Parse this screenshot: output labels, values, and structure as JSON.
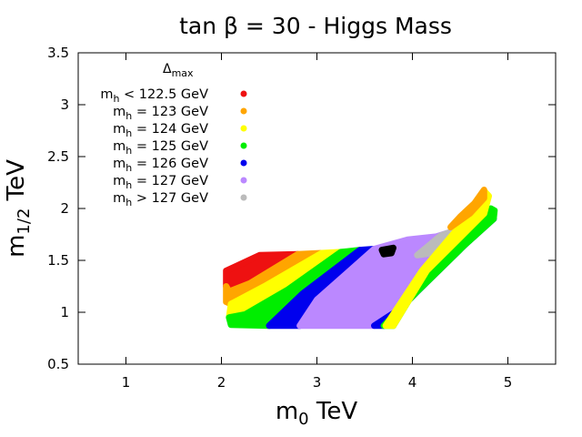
{
  "chart_data": {
    "type": "scatter",
    "title": "tan β = 30 - Higgs Mass",
    "xlabel": {
      "main": "m",
      "sub": "0",
      "rest": " TeV"
    },
    "ylabel": {
      "main": "m",
      "sub": "1/2",
      "rest": " TeV"
    },
    "xlim": [
      0.5,
      5.5
    ],
    "ylim": [
      0.5,
      3.5
    ],
    "xticks": [
      1,
      2,
      3,
      4,
      5
    ],
    "yticks": [
      0.5,
      1,
      1.5,
      2,
      2.5,
      3,
      3.5
    ],
    "xtick_labels": [
      "1",
      "2",
      "3",
      "4",
      "5"
    ],
    "ytick_labels": [
      "0.5",
      "1",
      "1.5",
      "2",
      "2.5",
      "3",
      "3.5"
    ],
    "legend": {
      "placement": "top-left",
      "title_main": "Δ",
      "title_sub": "max",
      "entries": [
        {
          "main": "m",
          "sub": "h",
          "rest": " < 122.5 GeV",
          "color": "#ee1111"
        },
        {
          "main": "m",
          "sub": "h",
          "rest": " = 123 GeV",
          "color": "#ffa500"
        },
        {
          "main": "m",
          "sub": "h",
          "rest": " = 124 GeV",
          "color": "#ffff00"
        },
        {
          "main": "m",
          "sub": "h",
          "rest": " = 125 GeV",
          "color": "#00ee00"
        },
        {
          "main": "m",
          "sub": "h",
          "rest": " = 126 GeV",
          "color": "#0000ee"
        },
        {
          "main": "m",
          "sub": "h",
          "rest": " = 127 GeV",
          "color": "#bb88ff"
        },
        {
          "main": "m",
          "sub": "h",
          "rest": " > 127 GeV",
          "color": "#bbbbbb"
        }
      ]
    },
    "series": [
      {
        "name": "mh < 122.5 GeV",
        "color": "#ee1111",
        "polygon": [
          [
            2.05,
            1.25
          ],
          [
            2.05,
            1.4
          ],
          [
            2.4,
            1.55
          ],
          [
            2.8,
            1.56
          ],
          [
            2.3,
            1.28
          ],
          [
            2.08,
            1.2
          ]
        ]
      },
      {
        "name": "mh = 123 GeV",
        "color": "#ffa500",
        "polygon": [
          [
            2.05,
            1.1
          ],
          [
            2.05,
            1.25
          ],
          [
            2.08,
            1.2
          ],
          [
            2.3,
            1.28
          ],
          [
            2.8,
            1.56
          ],
          [
            3.05,
            1.57
          ],
          [
            2.45,
            1.25
          ],
          [
            2.1,
            1.08
          ]
        ]
      },
      {
        "name": "mh = 124 GeV",
        "color": "#ffff00",
        "polygon": [
          [
            2.08,
            0.95
          ],
          [
            2.1,
            1.08
          ],
          [
            2.45,
            1.25
          ],
          [
            3.05,
            1.57
          ],
          [
            3.25,
            1.58
          ],
          [
            2.7,
            1.22
          ],
          [
            2.25,
            0.98
          ]
        ]
      },
      {
        "name": "mh = 125 GeV",
        "color": "#00ee00",
        "polygon": [
          [
            2.1,
            0.88
          ],
          [
            2.08,
            0.95
          ],
          [
            2.25,
            0.98
          ],
          [
            2.7,
            1.22
          ],
          [
            3.25,
            1.58
          ],
          [
            3.45,
            1.6
          ],
          [
            2.85,
            1.18
          ],
          [
            2.5,
            0.87
          ]
        ]
      },
      {
        "name": "mh = 126 GeV",
        "color": "#0000ee",
        "polygon": [
          [
            2.5,
            0.87
          ],
          [
            2.85,
            1.18
          ],
          [
            3.45,
            1.6
          ],
          [
            3.6,
            1.61
          ],
          [
            3.0,
            1.12
          ],
          [
            2.82,
            0.87
          ]
        ]
      },
      {
        "name": "mh = 127 GeV",
        "color": "#bb88ff",
        "polygon": [
          [
            2.82,
            0.87
          ],
          [
            3.0,
            1.12
          ],
          [
            3.6,
            1.61
          ],
          [
            3.95,
            1.7
          ],
          [
            4.25,
            1.73
          ],
          [
            4.6,
            1.83
          ],
          [
            4.8,
            1.93
          ],
          [
            4.52,
            1.73
          ],
          [
            4.2,
            1.4
          ],
          [
            3.85,
            1.02
          ],
          [
            3.6,
            0.87
          ]
        ]
      },
      {
        "name": "mh > 127 GeV",
        "color": "#bbbbbb",
        "polygon": [
          [
            4.05,
            1.55
          ],
          [
            4.3,
            1.74
          ],
          [
            4.6,
            1.84
          ],
          [
            4.48,
            1.7
          ],
          [
            4.2,
            1.57
          ]
        ]
      },
      {
        "name": "mh = 126 GeV (upper band)",
        "color": "#0000ee",
        "polygon": [
          [
            3.6,
            0.87
          ],
          [
            3.85,
            1.02
          ],
          [
            4.2,
            1.4
          ],
          [
            4.52,
            1.73
          ],
          [
            4.82,
            1.95
          ],
          [
            4.85,
            1.9
          ],
          [
            4.55,
            1.65
          ],
          [
            4.05,
            1.2
          ],
          [
            3.7,
            0.87
          ]
        ]
      },
      {
        "name": "mh = 125 GeV (upper band)",
        "color": "#00ee00",
        "polygon": [
          [
            3.7,
            0.87
          ],
          [
            4.05,
            1.2
          ],
          [
            4.55,
            1.65
          ],
          [
            4.85,
            1.9
          ],
          [
            4.86,
            1.98
          ],
          [
            4.82,
            2.0
          ],
          [
            4.75,
            1.95
          ],
          [
            4.15,
            1.4
          ],
          [
            3.8,
            0.87
          ]
        ]
      },
      {
        "name": "mh = 124 GeV (upper band)",
        "color": "#ffff00",
        "polygon": [
          [
            3.8,
            0.87
          ],
          [
            4.15,
            1.4
          ],
          [
            4.75,
            1.95
          ],
          [
            4.8,
            2.12
          ],
          [
            4.76,
            2.16
          ],
          [
            4.7,
            2.05
          ],
          [
            4.1,
            1.4
          ],
          [
            3.72,
            0.87
          ]
        ]
      },
      {
        "name": "mh = 123 GeV (upper band)",
        "color": "#ffa500",
        "polygon": [
          [
            4.4,
            1.82
          ],
          [
            4.6,
            1.95
          ],
          [
            4.75,
            2.1
          ],
          [
            4.75,
            2.18
          ],
          [
            4.65,
            2.05
          ],
          [
            4.5,
            1.92
          ]
        ]
      },
      {
        "name": "black spot",
        "color": "#000000",
        "polygon": [
          [
            3.68,
            1.6
          ],
          [
            3.8,
            1.62
          ],
          [
            3.78,
            1.57
          ],
          [
            3.7,
            1.56
          ]
        ]
      }
    ]
  }
}
